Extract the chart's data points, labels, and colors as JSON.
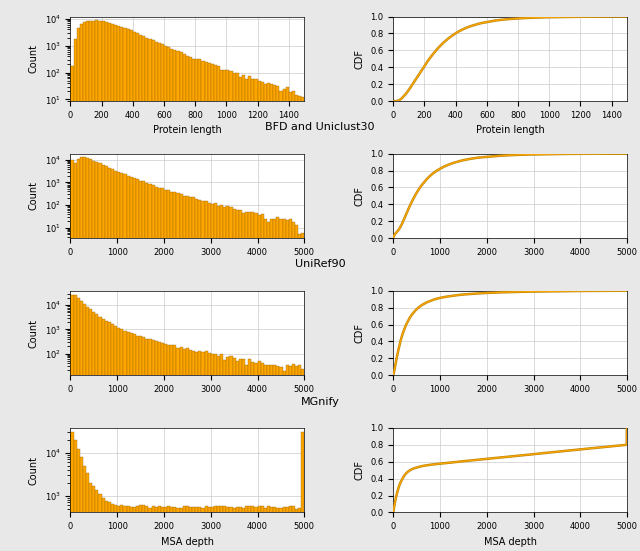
{
  "ylabel_hist": "Count",
  "ylabel_cdf": "CDF",
  "bar_facecolor": "#FFA500",
  "bar_edgecolor": "#8B6000",
  "line_color_dark": "#B8860B",
  "line_color_light": "#FFA500",
  "grid_color": "#cccccc",
  "fig_facecolor": "#e8e8e8",
  "ax_facecolor": "#ffffff",
  "row0_title": "",
  "row1_title": "BFD and Uniclust30",
  "row2_title": "UniRef90",
  "row3_title": "MGnify",
  "row0_xlabel_hist": "Protein length",
  "row0_xlabel_cdf": "Protein length",
  "row3_xlabel_hist": "MSA depth",
  "row3_xlabel_cdf": "MSA depth",
  "tick_fontsize": 6,
  "label_fontsize": 7,
  "title_fontsize": 8
}
